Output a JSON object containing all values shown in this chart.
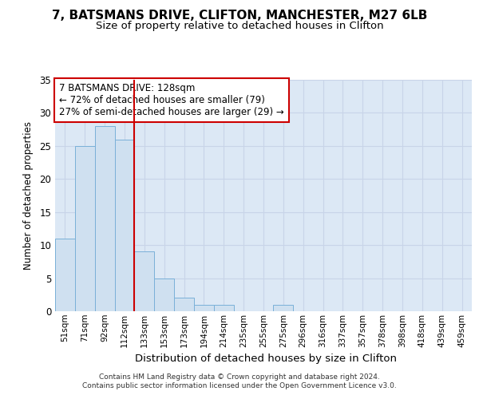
{
  "title1": "7, BATSMANS DRIVE, CLIFTON, MANCHESTER, M27 6LB",
  "title2": "Size of property relative to detached houses in Clifton",
  "xlabel": "Distribution of detached houses by size in Clifton",
  "ylabel": "Number of detached properties",
  "footnote": "Contains HM Land Registry data © Crown copyright and database right 2024.\nContains public sector information licensed under the Open Government Licence v3.0.",
  "categories": [
    "51sqm",
    "71sqm",
    "92sqm",
    "112sqm",
    "133sqm",
    "153sqm",
    "173sqm",
    "194sqm",
    "214sqm",
    "235sqm",
    "255sqm",
    "275sqm",
    "296sqm",
    "316sqm",
    "337sqm",
    "357sqm",
    "378sqm",
    "398sqm",
    "418sqm",
    "439sqm",
    "459sqm"
  ],
  "values": [
    11,
    25,
    28,
    26,
    9,
    5,
    2,
    1,
    1,
    0,
    0,
    1,
    0,
    0,
    0,
    0,
    0,
    0,
    0,
    0,
    0
  ],
  "bar_color": "#cfe0f0",
  "bar_edge_color": "#7ab0d8",
  "grid_color": "#c8d4e8",
  "bg_color": "#dce8f5",
  "ref_line_x": 3.5,
  "ref_line_color": "#cc0000",
  "annotation_line1": "7 BATSMANS DRIVE: 128sqm",
  "annotation_line2": "← 72% of detached houses are smaller (79)",
  "annotation_line3": "27% of semi-detached houses are larger (29) →",
  "annotation_box_color": "#cc0000",
  "ylim": [
    0,
    35
  ],
  "yticks": [
    0,
    5,
    10,
    15,
    20,
    25,
    30,
    35
  ],
  "title1_fontsize": 11,
  "title2_fontsize": 9.5
}
